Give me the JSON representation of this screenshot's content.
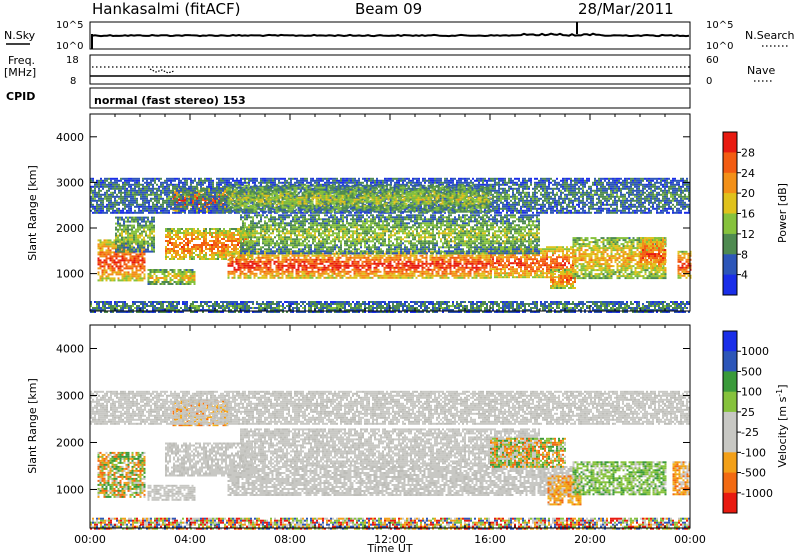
{
  "header": {
    "station": "Hankasalmi (fitACF)",
    "beam": "Beam 09",
    "date": "28/Mar/2011"
  },
  "strips": {
    "nsky_label": "N.Sky",
    "nsearch_label": "N.Search",
    "freq_label_1": "Freq.",
    "freq_label_2": "[MHz]",
    "nave_label": "Nave",
    "cpid_label": "CPID",
    "cpid_text": "normal (fast stereo) 153",
    "noise_left_top": "10^5",
    "noise_left_bottom": "10^0",
    "noise_right_top": "10^5",
    "noise_right_bottom": "10^0",
    "freq_left_top": "18",
    "freq_left_bottom": "8",
    "nave_right_top": "60",
    "nave_right_bottom": "0"
  },
  "chart_data": [
    {
      "type": "heatmap",
      "name": "power-panel",
      "ylabel": "Slant Range [km]",
      "ylim": [
        180,
        4500
      ],
      "y_ticks": [
        "1000",
        "2000",
        "3000",
        "4000"
      ],
      "xlim": [
        0,
        24
      ],
      "colorbar_label": "Power [dB]",
      "colorbar_ticks": [
        "4",
        "8",
        "12",
        "16",
        "20",
        "24",
        "28"
      ],
      "colorbar_range": [
        0,
        30
      ],
      "colors": [
        "#1a2ee8",
        "#2d56b8",
        "#4e8a50",
        "#86c23c",
        "#e0c21c",
        "#f39018",
        "#f35c12",
        "#e81a10"
      ],
      "regions": [
        {
          "t0": 0.3,
          "t1": 2.2,
          "r0": 850,
          "r1": 1750,
          "level": 27,
          "variant": 6
        },
        {
          "t0": 1.0,
          "t1": 2.6,
          "r0": 1500,
          "r1": 2250,
          "level": 14,
          "variant": 3
        },
        {
          "t0": 2.3,
          "t1": 4.2,
          "r0": 780,
          "r1": 1100,
          "level": 18,
          "variant": 4
        },
        {
          "t0": 3.0,
          "t1": 6.5,
          "r0": 1300,
          "r1": 2000,
          "level": 24,
          "variant": 5
        },
        {
          "t0": 5.5,
          "t1": 16.0,
          "r0": 900,
          "r1": 1500,
          "level": 28,
          "variant": 7
        },
        {
          "t0": 16.0,
          "t1": 19.3,
          "r0": 900,
          "r1": 1600,
          "level": 26,
          "variant": 6
        },
        {
          "t0": 18.4,
          "t1": 19.4,
          "r0": 700,
          "r1": 1100,
          "level": 24,
          "variant": 5
        },
        {
          "t0": 19.3,
          "t1": 23.0,
          "r0": 900,
          "r1": 1800,
          "level": 20,
          "variant": 4
        },
        {
          "t0": 22.0,
          "t1": 23.0,
          "r0": 1100,
          "r1": 1800,
          "level": 27,
          "variant": 6
        },
        {
          "t0": 23.5,
          "t1": 24.0,
          "r0": 900,
          "r1": 1500,
          "level": 27,
          "variant": 6
        },
        {
          "t0": 6.0,
          "t1": 18.0,
          "r0": 1450,
          "r1": 2300,
          "level": 14,
          "variant": 3
        },
        {
          "t0": 3.3,
          "t1": 5.5,
          "r0": 2350,
          "r1": 2900,
          "level": 27,
          "variant": 6
        },
        {
          "t0": 0.0,
          "t1": 24.0,
          "r0": 2350,
          "r1": 3100,
          "level": 9,
          "variant": 1
        },
        {
          "t0": 5.5,
          "t1": 16.0,
          "r0": 2350,
          "r1": 2950,
          "level": 15,
          "variant": 3
        },
        {
          "t0": 0.0,
          "t1": 24.0,
          "r0": 180,
          "r1": 400,
          "level": 10,
          "variant": 2
        }
      ]
    },
    {
      "type": "heatmap",
      "name": "velocity-panel",
      "ylabel": "Slant Range [km]",
      "ylim": [
        180,
        4500
      ],
      "y_ticks": [
        "1000",
        "2000",
        "3000",
        "4000"
      ],
      "xlim": [
        0,
        24
      ],
      "x_ticks": [
        "00:00",
        "04:00",
        "08:00",
        "12:00",
        "16:00",
        "20:00",
        "00:00"
      ],
      "xlabel": "Time UT",
      "colorbar_label": "Velocity [m s^-1]",
      "colorbar_ticks": [
        "1000",
        "500",
        "100",
        "25",
        "-25",
        "-100",
        "-500",
        "-1000"
      ],
      "colors": [
        "#1a2ee8",
        "#2d56b8",
        "#3a9a3a",
        "#86c23c",
        "#c8c8c4",
        "#c8c8c4",
        "#f3a018",
        "#f36a12",
        "#e81a10"
      ],
      "regions": [
        {
          "t0": 0.3,
          "t1": 2.2,
          "r0": 850,
          "r1": 1800,
          "kind": "orange-green"
        },
        {
          "t0": 2.3,
          "t1": 4.2,
          "r0": 780,
          "r1": 1100,
          "kind": "gray"
        },
        {
          "t0": 3.0,
          "t1": 6.5,
          "r0": 1300,
          "r1": 2000,
          "kind": "gray"
        },
        {
          "t0": 5.5,
          "t1": 19.3,
          "r0": 900,
          "r1": 1500,
          "kind": "gray"
        },
        {
          "t0": 6.0,
          "t1": 18.0,
          "r0": 1500,
          "r1": 2300,
          "kind": "gray"
        },
        {
          "t0": 3.3,
          "t1": 5.5,
          "r0": 2350,
          "r1": 2900,
          "kind": "orange"
        },
        {
          "t0": 0.0,
          "t1": 24.0,
          "r0": 2400,
          "r1": 3100,
          "kind": "gray"
        },
        {
          "t0": 18.3,
          "t1": 19.6,
          "r0": 700,
          "r1": 1300,
          "kind": "orange"
        },
        {
          "t0": 19.3,
          "t1": 23.0,
          "r0": 900,
          "r1": 1600,
          "kind": "green"
        },
        {
          "t0": 16.0,
          "t1": 19.0,
          "r0": 1500,
          "r1": 2100,
          "kind": "orange-green"
        },
        {
          "t0": 23.3,
          "t1": 24.0,
          "r0": 900,
          "r1": 1600,
          "kind": "orange"
        },
        {
          "t0": 0.0,
          "t1": 24.0,
          "r0": 180,
          "r1": 400,
          "kind": "mixed"
        }
      ]
    }
  ]
}
